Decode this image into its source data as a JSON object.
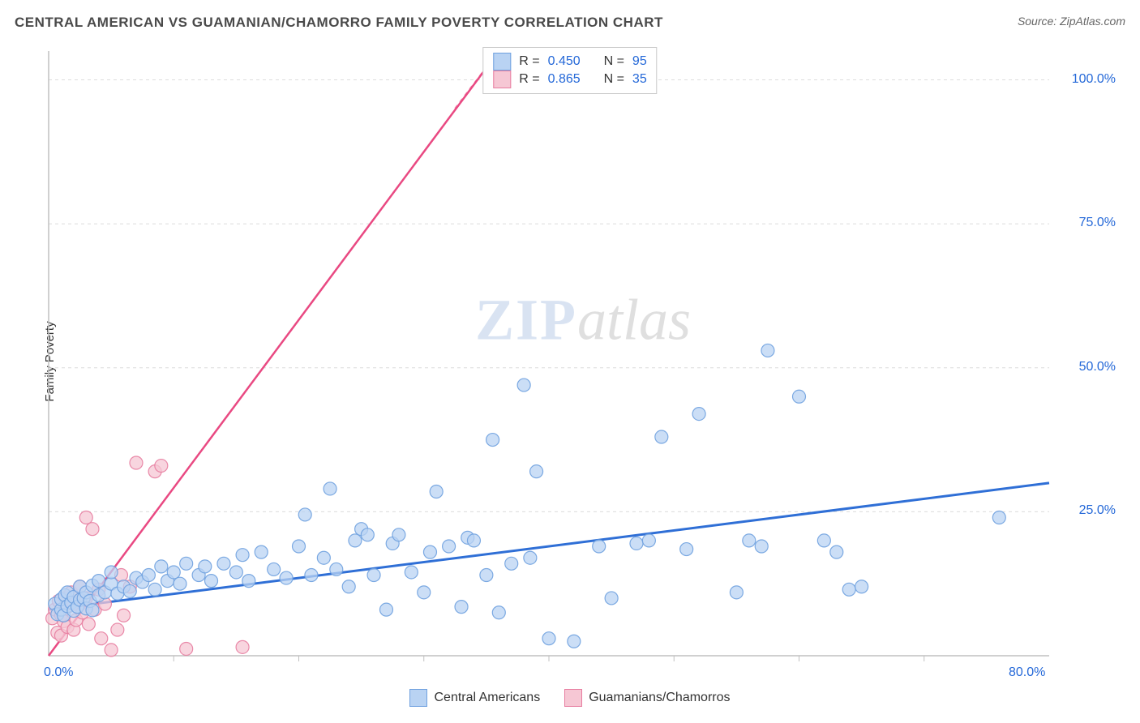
{
  "title": "CENTRAL AMERICAN VS GUAMANIAN/CHAMORRO FAMILY POVERTY CORRELATION CHART",
  "source_label": "Source:",
  "source_name": "ZipAtlas.com",
  "ylabel": "Family Poverty",
  "watermark_a": "ZIP",
  "watermark_b": "atlas",
  "chart": {
    "type": "scatter",
    "background_color": "#ffffff",
    "grid_color": "#dcdcdc",
    "axis_color": "#c0c0c0",
    "tick_label_color": "#2468d8",
    "tick_fontsize": 16,
    "title_fontsize": 17,
    "title_color": "#4a4a4a",
    "xlim": [
      0,
      80
    ],
    "ylim": [
      0,
      105
    ],
    "x_ticks": [
      {
        "value": 0,
        "label": "0.0%"
      },
      {
        "value": 80,
        "label": "80.0%"
      }
    ],
    "y_grid": [
      {
        "value": 25,
        "label": "25.0%"
      },
      {
        "value": 50,
        "label": "50.0%"
      },
      {
        "value": 75,
        "label": "75.0%"
      },
      {
        "value": 100,
        "label": "100.0%"
      }
    ],
    "series": [
      {
        "name": "Central Americans",
        "marker_fill": "#b9d3f3",
        "marker_stroke": "#6fa1df",
        "marker_radius": 8,
        "marker_opacity": 0.75,
        "trend_color": "#2f6fd6",
        "trend_width": 3,
        "trend": {
          "x1": 0,
          "y1": 8,
          "x2": 80,
          "y2": 30
        },
        "R": "0.450",
        "N": "95",
        "points": [
          [
            0.5,
            9.0
          ],
          [
            0.7,
            7.2
          ],
          [
            1.0,
            8.0
          ],
          [
            1.0,
            9.8
          ],
          [
            1.2,
            7.0
          ],
          [
            1.3,
            10.5
          ],
          [
            1.5,
            8.6
          ],
          [
            1.5,
            11.0
          ],
          [
            1.8,
            9.2
          ],
          [
            2.0,
            7.8
          ],
          [
            2.0,
            10.2
          ],
          [
            2.3,
            8.5
          ],
          [
            2.5,
            9.7
          ],
          [
            2.5,
            12.0
          ],
          [
            2.8,
            10.0
          ],
          [
            3.0,
            8.2
          ],
          [
            3.0,
            11.0
          ],
          [
            3.3,
            9.5
          ],
          [
            3.5,
            7.9
          ],
          [
            3.5,
            12.2
          ],
          [
            4.0,
            10.5
          ],
          [
            4.0,
            13.0
          ],
          [
            4.5,
            11.0
          ],
          [
            5.0,
            12.5
          ],
          [
            5.0,
            14.5
          ],
          [
            5.5,
            10.8
          ],
          [
            6.0,
            12.0
          ],
          [
            6.5,
            11.2
          ],
          [
            7.0,
            13.5
          ],
          [
            7.5,
            12.8
          ],
          [
            8.0,
            14.0
          ],
          [
            8.5,
            11.5
          ],
          [
            9.0,
            15.5
          ],
          [
            9.5,
            13.0
          ],
          [
            10.0,
            14.5
          ],
          [
            10.5,
            12.5
          ],
          [
            11.0,
            16.0
          ],
          [
            12.0,
            14.0
          ],
          [
            12.5,
            15.5
          ],
          [
            13.0,
            13.0
          ],
          [
            14.0,
            16.0
          ],
          [
            15.0,
            14.5
          ],
          [
            15.5,
            17.5
          ],
          [
            16.0,
            13.0
          ],
          [
            17.0,
            18.0
          ],
          [
            18.0,
            15.0
          ],
          [
            19.0,
            13.5
          ],
          [
            20.0,
            19.0
          ],
          [
            20.5,
            24.5
          ],
          [
            21.0,
            14.0
          ],
          [
            22.0,
            17.0
          ],
          [
            22.5,
            29.0
          ],
          [
            23.0,
            15.0
          ],
          [
            24.0,
            12.0
          ],
          [
            24.5,
            20.0
          ],
          [
            25.0,
            22.0
          ],
          [
            25.5,
            21.0
          ],
          [
            26.0,
            14.0
          ],
          [
            27.0,
            8.0
          ],
          [
            27.5,
            19.5
          ],
          [
            28.0,
            21.0
          ],
          [
            29.0,
            14.5
          ],
          [
            30.0,
            11.0
          ],
          [
            30.5,
            18.0
          ],
          [
            31.0,
            28.5
          ],
          [
            32.0,
            19.0
          ],
          [
            33.0,
            8.5
          ],
          [
            33.5,
            20.5
          ],
          [
            34.0,
            20.0
          ],
          [
            35.0,
            14.0
          ],
          [
            35.5,
            37.5
          ],
          [
            36.0,
            7.5
          ],
          [
            37.0,
            16.0
          ],
          [
            38.0,
            47.0
          ],
          [
            38.5,
            17.0
          ],
          [
            39.0,
            32.0
          ],
          [
            40.0,
            3.0
          ],
          [
            42.0,
            2.5
          ],
          [
            44.0,
            19.0
          ],
          [
            45.0,
            10.0
          ],
          [
            47.0,
            19.5
          ],
          [
            48.0,
            20.0
          ],
          [
            49.0,
            38.0
          ],
          [
            51.0,
            18.5
          ],
          [
            52.0,
            42.0
          ],
          [
            55.0,
            11.0
          ],
          [
            56.0,
            20.0
          ],
          [
            57.0,
            19.0
          ],
          [
            57.5,
            53.0
          ],
          [
            60.0,
            45.0
          ],
          [
            62.0,
            20.0
          ],
          [
            63.0,
            18.0
          ],
          [
            64.0,
            11.5
          ],
          [
            65.0,
            12.0
          ],
          [
            76.0,
            24.0
          ]
        ]
      },
      {
        "name": "Guamanians/Chamorros",
        "marker_fill": "#f6c7d4",
        "marker_stroke": "#e77da0",
        "marker_radius": 8,
        "marker_opacity": 0.75,
        "trend_color": "#e94982",
        "trend_width": 2.5,
        "trend": {
          "x1": 0,
          "y1": 0,
          "x2": 36,
          "y2": 105
        },
        "dashed_ext": {
          "x1": 32.5,
          "y1": 95,
          "x2": 36,
          "y2": 105
        },
        "R": "0.865",
        "N": "35",
        "points": [
          [
            0.3,
            6.5
          ],
          [
            0.5,
            8.0
          ],
          [
            0.7,
            4.0
          ],
          [
            0.8,
            9.5
          ],
          [
            1.0,
            7.0
          ],
          [
            1.0,
            3.5
          ],
          [
            1.2,
            6.0
          ],
          [
            1.3,
            10.0
          ],
          [
            1.5,
            5.0
          ],
          [
            1.5,
            8.5
          ],
          [
            1.8,
            11.0
          ],
          [
            2.0,
            4.5
          ],
          [
            2.0,
            9.0
          ],
          [
            2.2,
            6.2
          ],
          [
            2.5,
            12.0
          ],
          [
            2.7,
            7.5
          ],
          [
            3.0,
            10.0
          ],
          [
            3.0,
            24.0
          ],
          [
            3.2,
            5.5
          ],
          [
            3.5,
            22.0
          ],
          [
            3.7,
            8.0
          ],
          [
            4.0,
            11.5
          ],
          [
            4.2,
            3.0
          ],
          [
            4.5,
            9.0
          ],
          [
            5.0,
            1.0
          ],
          [
            5.5,
            4.5
          ],
          [
            5.8,
            14.0
          ],
          [
            6.0,
            7.0
          ],
          [
            6.5,
            12.0
          ],
          [
            7.0,
            33.5
          ],
          [
            8.5,
            32.0
          ],
          [
            9.0,
            33.0
          ],
          [
            11.0,
            1.2
          ],
          [
            15.5,
            1.5
          ],
          [
            36.0,
            103.0
          ]
        ]
      }
    ]
  },
  "legend_top": {
    "R_label": "R =",
    "N_label": "N ="
  },
  "legend_bottom": [
    {
      "label": "Central Americans",
      "fill": "#b9d3f3",
      "stroke": "#6fa1df"
    },
    {
      "label": "Guamanians/Chamorros",
      "fill": "#f6c7d4",
      "stroke": "#e77da0"
    }
  ]
}
